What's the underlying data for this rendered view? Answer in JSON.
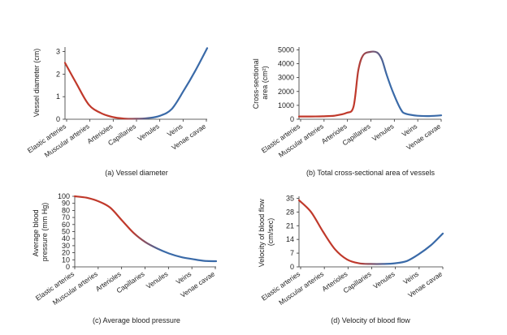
{
  "figure": {
    "colors": {
      "arterial": "#c0392b",
      "venous": "#3a6aa8",
      "axis": "#333333"
    }
  },
  "chart_data": [
    {
      "type": "line",
      "caption": "(a) Vessel diameter",
      "ylabel": "Vessel diameter (cm)",
      "ylim": [
        0,
        3.2
      ],
      "yticks": [
        0,
        1,
        2,
        3
      ],
      "categories": [
        "Elastic arteries",
        "Muscular arteries",
        "Arterioles",
        "Capillaries",
        "Venules",
        "Veins",
        "Venae cavae"
      ],
      "x": [
        0,
        0.5,
        1,
        1.5,
        2,
        2.5,
        3,
        3.5,
        4,
        4.5,
        5,
        5.5,
        6
      ],
      "values": [
        2.5,
        1.55,
        0.65,
        0.28,
        0.1,
        0.03,
        0.02,
        0.05,
        0.15,
        0.45,
        1.25,
        2.15,
        3.15
      ],
      "grid": false
    },
    {
      "type": "line",
      "caption": "(b) Total cross-sectional area of vessels",
      "ylabel": [
        "Cross-sectional",
        "area (cm²)"
      ],
      "ylim": [
        0,
        5200
      ],
      "yticks": [
        0,
        1000,
        2000,
        3000,
        4000,
        5000
      ],
      "categories": [
        "Elastic arteries",
        "Muscular arteries",
        "Arterioles",
        "Capillaries",
        "Venules",
        "Veins",
        "Venae cavae"
      ],
      "x": [
        0,
        0.5,
        1,
        1.5,
        2,
        2.3,
        2.5,
        2.7,
        3,
        3.3,
        3.5,
        3.7,
        4,
        4.3,
        4.5,
        5,
        5.5,
        6
      ],
      "values": [
        200,
        200,
        210,
        260,
        450,
        900,
        3500,
        4600,
        4850,
        4800,
        4300,
        3200,
        1800,
        700,
        400,
        250,
        230,
        280
      ],
      "grid": false
    },
    {
      "type": "line",
      "caption": "(c) Average blood pressure",
      "ylabel": [
        "Average blood",
        "pressure (mm Hg)"
      ],
      "ylim": [
        0,
        100
      ],
      "yticks": [
        0,
        10,
        20,
        30,
        40,
        50,
        60,
        70,
        80,
        90,
        100
      ],
      "categories": [
        "Elastic arteries",
        "Muscular arteries",
        "Arterioles",
        "Capillaries",
        "Venules",
        "Veins",
        "Venae cavae"
      ],
      "x": [
        0,
        0.5,
        1,
        1.5,
        2,
        2.5,
        3,
        3.5,
        4,
        4.5,
        5,
        5.5,
        6
      ],
      "values": [
        100,
        98,
        93,
        84,
        66,
        48,
        35,
        26,
        19,
        14,
        11,
        8.5,
        8
      ],
      "grid": false
    },
    {
      "type": "line",
      "caption": "(d) Velocity of blood flow",
      "ylabel": [
        "Velocity of blood flow",
        "(cm/sec)"
      ],
      "ylim": [
        0,
        36
      ],
      "yticks": [
        0,
        7,
        14,
        21,
        28,
        35
      ],
      "categories": [
        "Elastic arteries",
        "Muscular arteries",
        "Arterioles",
        "Capillaries",
        "Venules",
        "Veins",
        "Venae cavae"
      ],
      "x": [
        0,
        0.5,
        1,
        1.5,
        2,
        2.5,
        3,
        3.5,
        4,
        4.5,
        5,
        5.5,
        6
      ],
      "values": [
        34,
        28,
        18,
        9,
        3.8,
        1.8,
        1.5,
        1.5,
        1.8,
        3,
        6.5,
        11,
        17
      ],
      "grid": false
    }
  ]
}
